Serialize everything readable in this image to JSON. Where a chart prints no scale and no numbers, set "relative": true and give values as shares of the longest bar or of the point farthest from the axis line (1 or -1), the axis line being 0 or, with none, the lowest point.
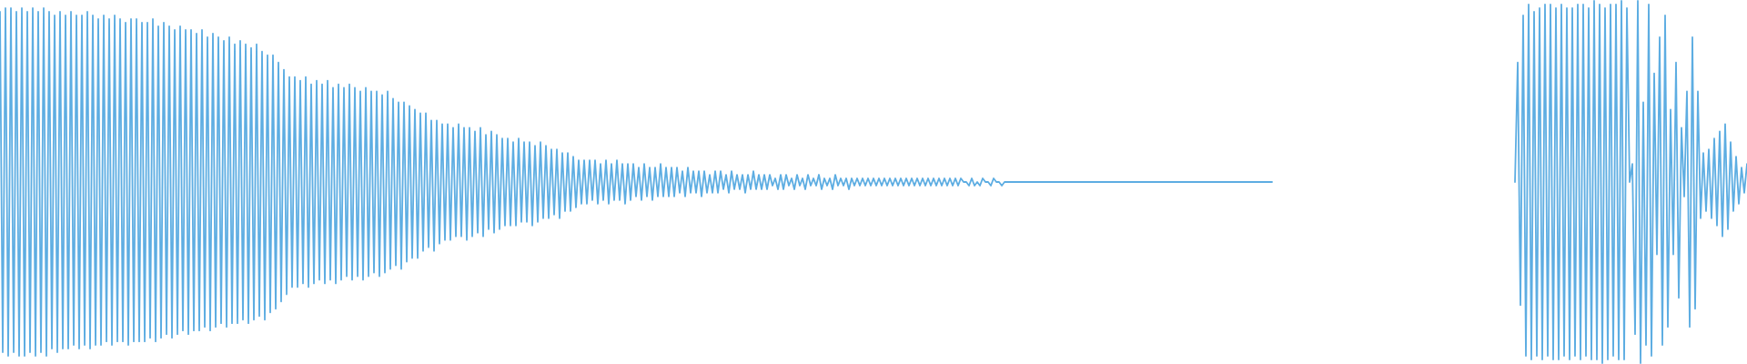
{
  "chart_data": {
    "type": "line",
    "relative": true,
    "grid": false,
    "legend": false,
    "categories": [
      null,
      null,
      null,
      null,
      null,
      null,
      null,
      null,
      null,
      null,
      null,
      null,
      null,
      null,
      null,
      null,
      null,
      null,
      null,
      null,
      null,
      null,
      null,
      null,
      null,
      null,
      null,
      null,
      null,
      null,
      null,
      null,
      null,
      null,
      null,
      null,
      null,
      null,
      null,
      null,
      null,
      null,
      null,
      null,
      null,
      null,
      null,
      null,
      null,
      null,
      null,
      null,
      null,
      null,
      null,
      null,
      null,
      null,
      null,
      null,
      null,
      null,
      null,
      null,
      null,
      null,
      null,
      null,
      null,
      null,
      null,
      null,
      null,
      null,
      null,
      null,
      null,
      null,
      null,
      null,
      null,
      null,
      null,
      null,
      null,
      null,
      null,
      null,
      null,
      null,
      null,
      null,
      null,
      null,
      null,
      null,
      null,
      null,
      null,
      null,
      null,
      null,
      null,
      null,
      null,
      null,
      null,
      null,
      null,
      null,
      null,
      null,
      null,
      null,
      null,
      null,
      null,
      null,
      null,
      null,
      null,
      null,
      null,
      null,
      null,
      null,
      null,
      null,
      null,
      null,
      null,
      null,
      null,
      null,
      null,
      null,
      null,
      null,
      null,
      null,
      null,
      null,
      null,
      null,
      null,
      null,
      null,
      null,
      null,
      null,
      null,
      null,
      null,
      null,
      null,
      null,
      null,
      null,
      null,
      null,
      null,
      null,
      null,
      null,
      null,
      null,
      null,
      null,
      null,
      null,
      null,
      null,
      null,
      null,
      null,
      null,
      null,
      null,
      null,
      null,
      null,
      null,
      null,
      null,
      null,
      null,
      null,
      null,
      null,
      null,
      null,
      null,
      null,
      null,
      null,
      null,
      null,
      null,
      null,
      null,
      null,
      null,
      null,
      null,
      null,
      null,
      null,
      null,
      null,
      null,
      null,
      null,
      null,
      null,
      null,
      null,
      null,
      null,
      null,
      null,
      null,
      null,
      null,
      null,
      null,
      null,
      null,
      null,
      null,
      null,
      null,
      null,
      null,
      null,
      null,
      null,
      null,
      null,
      null,
      null,
      null,
      null,
      null,
      null,
      null,
      null,
      null,
      null,
      null,
      null,
      null,
      null,
      null,
      null,
      null,
      null,
      null,
      null,
      null,
      null,
      null,
      null,
      null,
      null,
      null,
      null,
      null,
      null,
      null,
      null,
      null,
      null,
      null,
      null,
      null,
      null,
      null,
      null,
      null,
      null,
      null,
      null,
      null,
      null,
      null,
      null,
      null,
      null,
      null,
      null,
      null,
      null,
      null,
      null,
      null,
      null,
      null,
      null,
      null,
      null,
      null,
      null,
      null,
      null,
      null,
      null,
      null,
      null,
      null,
      null,
      null,
      null,
      null,
      null,
      null,
      null,
      null,
      null,
      null,
      null,
      null,
      null,
      null,
      null,
      null,
      null,
      null,
      null,
      null,
      null,
      null,
      null,
      null,
      null,
      null,
      null,
      null,
      null,
      null,
      null,
      null,
      null,
      null,
      null,
      null,
      null,
      null,
      null,
      null,
      null,
      null,
      null,
      null,
      null,
      null,
      null,
      null,
      null,
      null,
      null,
      null,
      null,
      null,
      null,
      null,
      null,
      null,
      null,
      null,
      null,
      null,
      null,
      null,
      null,
      null,
      null,
      null,
      null,
      null,
      null,
      null,
      null,
      null,
      null,
      null,
      null,
      null,
      null,
      null,
      null,
      null,
      null,
      null,
      null,
      null,
      null,
      null,
      null,
      null,
      null,
      null,
      null,
      null,
      null,
      null,
      null,
      null,
      null,
      null,
      null,
      null,
      null,
      null,
      null,
      null,
      null,
      null,
      null,
      null,
      null,
      null,
      null,
      null,
      null,
      null,
      null,
      null,
      null,
      null,
      null,
      null,
      null,
      null,
      null,
      null,
      null,
      null,
      null,
      null,
      null,
      null,
      null,
      null,
      null,
      null,
      null,
      null,
      null,
      null,
      null,
      null,
      null,
      null,
      null,
      null,
      null,
      null,
      null,
      null,
      null,
      null,
      null,
      null,
      null,
      null,
      null,
      null,
      null,
      null,
      null,
      null,
      null,
      null,
      null,
      null,
      null,
      null,
      null,
      null,
      null,
      null,
      null,
      null,
      null,
      null,
      null,
      null,
      null,
      null,
      null,
      null,
      null,
      null,
      null,
      null,
      null,
      null,
      null,
      null,
      null,
      null,
      null,
      null,
      null,
      null,
      null,
      null,
      null,
      null,
      null,
      null,
      null,
      null,
      null,
      null,
      null,
      null,
      null,
      null,
      null,
      null,
      null,
      null,
      null,
      null,
      null,
      null,
      null,
      null,
      null,
      null,
      null,
      null,
      null,
      null,
      null,
      null,
      null,
      null,
      null,
      null,
      null,
      null,
      null,
      null,
      null,
      null,
      null,
      null,
      null,
      null,
      null,
      null,
      null,
      null,
      null,
      null,
      null,
      null,
      null,
      null,
      null,
      null,
      null,
      null,
      null,
      null,
      null,
      null,
      null,
      null,
      null,
      null,
      null,
      null,
      null,
      null,
      null,
      null,
      null,
      null,
      null,
      null,
      null,
      null,
      null,
      null,
      null,
      null,
      null,
      null,
      null,
      null,
      null,
      null,
      null,
      null,
      null,
      null,
      null,
      null,
      null,
      null,
      null,
      null,
      null,
      null,
      null,
      null,
      null,
      null,
      null,
      null,
      null,
      null,
      null,
      null,
      null,
      null,
      null,
      null,
      null,
      null,
      null,
      null,
      null,
      null,
      null,
      null,
      null,
      null,
      null,
      null,
      null,
      null,
      null,
      null,
      null,
      null,
      null,
      null
    ],
    "series": [
      {
        "color": "#5dade2",
        "values": [
          0.97,
          0.03,
          0.98,
          0.02,
          0.98,
          0.03,
          0.97,
          0.02,
          0.98,
          0.02,
          0.97,
          0.03,
          0.98,
          0.02,
          0.97,
          0.03,
          0.98,
          0.02,
          0.97,
          0.04,
          0.96,
          0.03,
          0.97,
          0.04,
          0.96,
          0.04,
          0.97,
          0.05,
          0.96,
          0.04,
          0.96,
          0.05,
          0.97,
          0.04,
          0.96,
          0.05,
          0.95,
          0.05,
          0.96,
          0.06,
          0.95,
          0.05,
          0.96,
          0.06,
          0.95,
          0.06,
          0.94,
          0.05,
          0.95,
          0.06,
          0.95,
          0.06,
          0.94,
          0.06,
          0.94,
          0.07,
          0.95,
          0.06,
          0.93,
          0.07,
          0.94,
          0.08,
          0.93,
          0.07,
          0.92,
          0.08,
          0.93,
          0.09,
          0.92,
          0.08,
          0.92,
          0.09,
          0.91,
          0.09,
          0.92,
          0.1,
          0.9,
          0.09,
          0.91,
          0.1,
          0.9,
          0.11,
          0.89,
          0.1,
          0.9,
          0.11,
          0.88,
          0.11,
          0.89,
          0.12,
          0.88,
          0.11,
          0.87,
          0.12,
          0.88,
          0.13,
          0.86,
          0.12,
          0.85,
          0.14,
          0.85,
          0.15,
          0.83,
          0.17,
          0.81,
          0.19,
          0.79,
          0.21,
          0.79,
          0.21,
          0.78,
          0.22,
          0.79,
          0.21,
          0.77,
          0.22,
          0.78,
          0.23,
          0.77,
          0.22,
          0.78,
          0.23,
          0.76,
          0.22,
          0.77,
          0.23,
          0.76,
          0.24,
          0.77,
          0.23,
          0.76,
          0.24,
          0.75,
          0.23,
          0.76,
          0.24,
          0.75,
          0.25,
          0.75,
          0.24,
          0.74,
          0.25,
          0.75,
          0.26,
          0.73,
          0.27,
          0.72,
          0.26,
          0.72,
          0.28,
          0.71,
          0.29,
          0.7,
          0.29,
          0.69,
          0.31,
          0.69,
          0.32,
          0.67,
          0.31,
          0.67,
          0.33,
          0.66,
          0.34,
          0.66,
          0.34,
          0.65,
          0.35,
          0.66,
          0.35,
          0.65,
          0.34,
          0.65,
          0.35,
          0.64,
          0.36,
          0.65,
          0.35,
          0.63,
          0.37,
          0.64,
          0.36,
          0.63,
          0.37,
          0.62,
          0.38,
          0.62,
          0.38,
          0.61,
          0.38,
          0.62,
          0.39,
          0.61,
          0.39,
          0.61,
          0.38,
          0.6,
          0.39,
          0.61,
          0.4,
          0.6,
          0.4,
          0.59,
          0.41,
          0.59,
          0.4,
          0.58,
          0.42,
          0.58,
          0.42,
          0.57,
          0.43,
          0.56,
          0.44,
          0.56,
          0.44,
          0.56,
          0.45,
          0.56,
          0.44,
          0.55,
          0.45,
          0.56,
          0.44,
          0.55,
          0.45,
          0.56,
          0.45,
          0.55,
          0.44,
          0.55,
          0.45,
          0.55,
          0.46,
          0.54,
          0.45,
          0.55,
          0.46,
          0.54,
          0.45,
          0.54,
          0.46,
          0.55,
          0.46,
          0.54,
          0.46,
          0.54,
          0.46,
          0.54,
          0.47,
          0.53,
          0.46,
          0.54,
          0.47,
          0.53,
          0.47,
          0.53,
          0.46,
          0.53,
          0.47,
          0.52,
          0.47,
          0.53,
          0.47,
          0.53,
          0.48,
          0.52,
          0.47,
          0.53,
          0.48,
          0.52,
          0.48,
          0.52,
          0.47,
          0.52,
          0.48,
          0.53,
          0.48,
          0.52,
          0.48,
          0.52,
          0.48,
          0.52,
          0.49,
          0.51,
          0.48,
          0.52,
          0.48,
          0.52,
          0.49,
          0.51,
          0.48,
          0.52,
          0.49,
          0.51,
          0.48,
          0.52,
          0.49,
          0.51,
          0.49,
          0.52,
          0.48,
          0.51,
          0.49,
          0.51,
          0.48,
          0.52,
          0.49,
          0.51,
          0.49,
          0.51,
          0.48,
          0.51,
          0.49,
          0.51,
          0.49,
          0.51,
          0.49,
          0.51,
          0.49,
          0.51,
          0.49,
          0.51,
          0.49,
          0.51,
          0.49,
          0.51,
          0.49,
          0.51,
          0.49,
          0.51,
          0.49,
          0.51,
          0.49,
          0.51,
          0.49,
          0.51,
          0.49,
          0.51,
          0.49,
          0.51,
          0.49,
          0.51,
          0.49,
          0.51,
          0.49,
          0.51,
          0.49,
          0.51,
          0.49,
          0.51,
          0.49,
          0.51,
          0.5,
          0.5,
          0.49,
          0.51,
          0.49,
          0.5,
          0.49,
          0.51,
          0.5,
          0.5,
          0.49,
          0.51,
          0.5,
          0.5,
          0.49,
          0.5,
          0.5,
          0.5,
          0.5,
          0.5,
          0.5,
          0.5,
          0.5,
          0.5,
          0.5,
          0.5,
          0.5,
          0.5,
          0.5,
          0.5,
          0.5,
          0.5,
          0.5,
          0.5,
          0.5,
          0.5,
          0.5,
          0.5,
          0.5,
          0.5,
          0.5,
          0.5,
          0.5,
          0.5,
          0.5,
          0.5,
          0.5,
          0.5,
          0.5,
          0.5,
          0.5,
          0.5,
          0.5,
          0.5,
          0.5,
          0.5,
          0.5,
          0.5,
          0.5,
          0.5,
          0.5,
          0.5,
          0.5,
          0.5,
          0.5,
          0.5,
          0.5,
          0.5,
          0.5,
          0.5,
          0.5,
          0.5,
          0.5,
          0.5,
          0.5,
          0.5,
          0.5,
          0.5,
          0.5,
          0.5,
          0.5,
          0.5,
          0.5,
          0.5,
          0.5,
          0.5,
          0.5,
          0.5,
          0.5,
          0.5,
          0.5,
          0.5,
          0.5,
          0.5,
          0.5,
          0.5,
          0.5,
          0.5,
          0.5,
          0.5,
          0.5,
          0.5,
          0.5,
          0.5,
          0.5,
          0.5,
          0.5,
          0.5,
          0.5,
          0.5,
          0.5,
          0.5,
          0.5,
          0.5,
          null,
          null,
          null,
          null,
          null,
          null,
          null,
          null,
          null,
          null,
          null,
          null,
          null,
          null,
          null,
          null,
          null,
          null,
          null,
          null,
          null,
          null,
          null,
          null,
          null,
          null,
          null,
          null,
          null,
          null,
          null,
          null,
          null,
          null,
          null,
          null,
          null,
          null,
          null,
          null,
          null,
          null,
          null,
          null,
          null,
          null,
          null,
          null,
          null,
          null,
          null,
          null,
          null,
          null,
          null,
          null,
          null,
          null,
          null,
          null,
          null,
          null,
          null,
          null,
          null,
          null,
          null,
          null,
          null,
          null,
          null,
          null,
          null,
          null,
          null,
          null,
          null,
          null,
          null,
          null,
          null,
          null,
          null,
          null,
          null,
          null,
          null,
          null,
          null,
          null,
          null,
          null,
          null,
          null,
          null,
          null,
          null,
          null,
          null,
          null,
          null,
          null,
          null,
          null,
          null,
          null,
          null,
          null,
          null,
          null,
          null,
          null,
          null,
          null,
          null,
          null,
          null,
          null,
          null,
          null,
          null,
          null,
          null,
          null,
          null,
          null,
          null,
          null,
          null,
          null,
          null,
          null,
          null,
          null,
          null,
          null,
          null,
          null,
          null,
          null,
          null,
          null,
          null,
          null,
          null,
          null,
          null,
          null,
          null,
          null,
          null,
          null,
          null,
          null,
          null,
          null,
          null,
          null,
          null,
          null,
          null,
          null,
          null,
          null,
          null,
          null,
          null,
          null,
          null,
          null,
          null,
          null,
          null,
          null
        ]
      },
      {
        "color": "#5dade2",
        "values": [
          null,
          null,
          null,
          null,
          null,
          null,
          null,
          null,
          null,
          null,
          null,
          null,
          null,
          null,
          null,
          null,
          null,
          null,
          null,
          null,
          null,
          null,
          null,
          null,
          null,
          null,
          null,
          null,
          null,
          null,
          null,
          null,
          null,
          null,
          null,
          null,
          null,
          null,
          null,
          null,
          null,
          null,
          null,
          null,
          null,
          null,
          null,
          null,
          null,
          null,
          null,
          null,
          null,
          null,
          null,
          null,
          null,
          null,
          null,
          null,
          null,
          null,
          null,
          null,
          null,
          null,
          null,
          null,
          null,
          null,
          null,
          null,
          null,
          null,
          null,
          null,
          null,
          null,
          null,
          null,
          null,
          null,
          null,
          null,
          null,
          null,
          null,
          null,
          null,
          null,
          null,
          null,
          null,
          null,
          null,
          null,
          null,
          null,
          null,
          null,
          null,
          null,
          null,
          null,
          null,
          null,
          null,
          null,
          null,
          null,
          null,
          null,
          null,
          null,
          null,
          null,
          null,
          null,
          null,
          null,
          null,
          null,
          null,
          null,
          null,
          null,
          null,
          null,
          null,
          null,
          null,
          null,
          null,
          null,
          null,
          null,
          null,
          null,
          null,
          null,
          null,
          null,
          null,
          null,
          null,
          null,
          null,
          null,
          null,
          null,
          null,
          null,
          null,
          null,
          null,
          null,
          null,
          null,
          null,
          null,
          null,
          null,
          null,
          null,
          null,
          null,
          null,
          null,
          null,
          null,
          null,
          null,
          null,
          null,
          null,
          null,
          null,
          null,
          null,
          null,
          null,
          null,
          null,
          null,
          null,
          null,
          null,
          null,
          null,
          null,
          null,
          null,
          null,
          null,
          null,
          null,
          null,
          null,
          null,
          null,
          null,
          null,
          null,
          null,
          null,
          null,
          null,
          null,
          null,
          null,
          null,
          null,
          null,
          null,
          null,
          null,
          null,
          null,
          null,
          null,
          null,
          null,
          null,
          null,
          null,
          null,
          null,
          null,
          null,
          null,
          null,
          null,
          null,
          null,
          null,
          null,
          null,
          null,
          null,
          null,
          null,
          null,
          null,
          null,
          null,
          null,
          null,
          null,
          null,
          null,
          null,
          null,
          null,
          null,
          null,
          null,
          null,
          null,
          null,
          null,
          null,
          null,
          null,
          null,
          null,
          null,
          null,
          null,
          null,
          null,
          null,
          null,
          null,
          null,
          null,
          null,
          null,
          null,
          null,
          null,
          null,
          null,
          null,
          null,
          null,
          null,
          null,
          null,
          null,
          null,
          null,
          null,
          null,
          null,
          null,
          null,
          null,
          null,
          null,
          null,
          null,
          null,
          null,
          null,
          null,
          null,
          null,
          null,
          null,
          null,
          null,
          null,
          null,
          null,
          null,
          null,
          null,
          null,
          null,
          null,
          null,
          null,
          null,
          null,
          null,
          null,
          null,
          null,
          null,
          null,
          null,
          null,
          null,
          null,
          null,
          null,
          null,
          null,
          null,
          null,
          null,
          null,
          null,
          null,
          null,
          null,
          null,
          null,
          null,
          null,
          null,
          null,
          null,
          null,
          null,
          null,
          null,
          null,
          null,
          null,
          null,
          null,
          null,
          null,
          null,
          null,
          null,
          null,
          null,
          null,
          null,
          null,
          null,
          null,
          null,
          null,
          null,
          null,
          null,
          null,
          null,
          null,
          null,
          null,
          null,
          null,
          null,
          null,
          null,
          null,
          null,
          null,
          null,
          null,
          null,
          null,
          null,
          null,
          null,
          null,
          null,
          null,
          null,
          null,
          null,
          null,
          null,
          null,
          null,
          null,
          null,
          null,
          null,
          null,
          null,
          null,
          null,
          null,
          null,
          null,
          null,
          null,
          null,
          null,
          null,
          null,
          null,
          null,
          null,
          null,
          null,
          null,
          null,
          null,
          null,
          null,
          null,
          null,
          null,
          null,
          null,
          null,
          null,
          null,
          null,
          null,
          null,
          null,
          null,
          null,
          null,
          null,
          null,
          null,
          null,
          null,
          null,
          null,
          null,
          null,
          null,
          null,
          null,
          null,
          null,
          null,
          null,
          null,
          null,
          null,
          null,
          null,
          null,
          null,
          null,
          null,
          null,
          null,
          null,
          null,
          null,
          null,
          null,
          null,
          null,
          null,
          null,
          null,
          null,
          null,
          null,
          null,
          null,
          null,
          null,
          null,
          null,
          null,
          null,
          null,
          null,
          null,
          null,
          null,
          null,
          null,
          null,
          null,
          null,
          null,
          null,
          null,
          null,
          null,
          null,
          null,
          null,
          null,
          null,
          null,
          null,
          null,
          null,
          null,
          null,
          null,
          null,
          null,
          null,
          null,
          null,
          null,
          null,
          null,
          null,
          null,
          null,
          null,
          null,
          null,
          null,
          null,
          null,
          null,
          null,
          null,
          null,
          null,
          null,
          null,
          null,
          null,
          null,
          null,
          null,
          0.5,
          0.83,
          0.16,
          0.96,
          0.02,
          0.99,
          0.01,
          0.97,
          0.02,
          0.98,
          0.01,
          0.99,
          0.02,
          0.99,
          0.01,
          0.98,
          0.01,
          0.99,
          0.02,
          0.98,
          0.01,
          0.98,
          0.02,
          0.99,
          0.01,
          0.99,
          0.02,
          0.98,
          0.01,
          1,
          0.01,
          0.99,
          0,
          0.98,
          0.01,
          0.99,
          0.02,
          0.99,
          0.01,
          1,
          0.01,
          0.98,
          0.5,
          0.55,
          0.08,
          1,
          0,
          0.72,
          0.05,
          0.99,
          0.02,
          0.8,
          0.3,
          0.9,
          0.05,
          0.96,
          0.1,
          0.7,
          0.3,
          0.83,
          0.18,
          0.65,
          0.46,
          0.75,
          0.1,
          0.9,
          0.15,
          0.75,
          0.4,
          0.58,
          0.42,
          0.59,
          0.4,
          0.62,
          0.38,
          0.64,
          0.35,
          0.66,
          0.37,
          0.61,
          0.42,
          0.57,
          0.44,
          0.54,
          0.47,
          0.55
        ]
      }
    ]
  }
}
